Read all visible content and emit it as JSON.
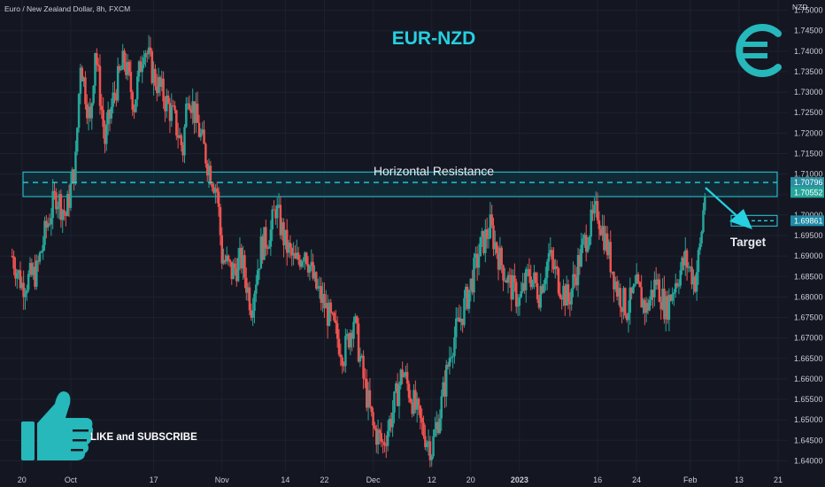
{
  "header": {
    "instrument": "Euro / New Zealand Dollar, 8h, FXCM",
    "currency": "NZD",
    "title": "EUR-NZD"
  },
  "annotations": {
    "resistance_label": "Horizontal Resistance",
    "target_label": "Target",
    "cta_label": "LIKE and SUBSCRIBE"
  },
  "icons": [
    "euro-icon",
    "thumbs-up-icon"
  ],
  "colors": {
    "background": "#141722",
    "accent": "#26d0e0",
    "up": "#26a69a",
    "down": "#ef5350",
    "zone_fill": "#0f3945",
    "price_badge": "#26a69a"
  },
  "chart_data": {
    "type": "candlestick",
    "title": "EUR-NZD",
    "ylabel": "NZD",
    "ylim": [
      1.6375,
      1.7525
    ],
    "yticks": [
      1.64,
      1.645,
      1.65,
      1.655,
      1.66,
      1.665,
      1.67,
      1.675,
      1.68,
      1.685,
      1.69,
      1.695,
      1.7,
      1.705,
      1.71,
      1.715,
      1.72,
      1.725,
      1.73,
      1.735,
      1.74,
      1.745,
      1.75
    ],
    "ytick_labels": [
      "1.64000",
      "1.64500",
      "1.65000",
      "1.65500",
      "1.66000",
      "1.66500",
      "1.67000",
      "1.67500",
      "1.68000",
      "1.68500",
      "1.69000",
      "1.69500",
      "1.70000",
      "1.70500",
      "1.71000",
      "1.71500",
      "1.72000",
      "1.72500",
      "1.73000",
      "1.73500",
      "1.74000",
      "1.74500",
      "1.75000"
    ],
    "xticks": [
      "20",
      "Oct",
      "17",
      "Nov",
      "14",
      "22",
      "Dec",
      "12",
      "20",
      "2023",
      "16",
      "24",
      "Feb",
      "13",
      "21"
    ],
    "xtick_days": [
      -6,
      4,
      21,
      35,
      48,
      56,
      66,
      78,
      86,
      96,
      112,
      120,
      131,
      141,
      149
    ],
    "resistance_zone": [
      1.7045,
      1.7105
    ],
    "resistance_level": 1.70796,
    "target_level": 1.69861,
    "price_badges": [
      {
        "label": "1.70796",
        "value": 1.70796
      },
      {
        "label": "1.70552",
        "value": 1.70552
      },
      {
        "label": "1.69861",
        "value": 1.69861
      }
    ],
    "close_path": [
      {
        "day": -8,
        "price": 1.69
      },
      {
        "day": -6,
        "price": 1.683
      },
      {
        "day": -3,
        "price": 1.686
      },
      {
        "day": -1,
        "price": 1.697
      },
      {
        "day": 1,
        "price": 1.705
      },
      {
        "day": 3,
        "price": 1.7
      },
      {
        "day": 5,
        "price": 1.713
      },
      {
        "day": 6,
        "price": 1.738
      },
      {
        "day": 8,
        "price": 1.722
      },
      {
        "day": 9,
        "price": 1.741
      },
      {
        "day": 11,
        "price": 1.718
      },
      {
        "day": 13,
        "price": 1.73
      },
      {
        "day": 15,
        "price": 1.738
      },
      {
        "day": 17,
        "price": 1.727
      },
      {
        "day": 19,
        "price": 1.742
      },
      {
        "day": 21,
        "price": 1.734
      },
      {
        "day": 23,
        "price": 1.729
      },
      {
        "day": 25,
        "price": 1.724
      },
      {
        "day": 27,
        "price": 1.716
      },
      {
        "day": 28,
        "price": 1.731
      },
      {
        "day": 30,
        "price": 1.722
      },
      {
        "day": 32,
        "price": 1.713
      },
      {
        "day": 34,
        "price": 1.706
      },
      {
        "day": 35,
        "price": 1.69
      },
      {
        "day": 37,
        "price": 1.686
      },
      {
        "day": 39,
        "price": 1.689
      },
      {
        "day": 41,
        "price": 1.678
      },
      {
        "day": 43,
        "price": 1.692
      },
      {
        "day": 45,
        "price": 1.696
      },
      {
        "day": 46,
        "price": 1.702
      },
      {
        "day": 48,
        "price": 1.693
      },
      {
        "day": 50,
        "price": 1.688
      },
      {
        "day": 52,
        "price": 1.692
      },
      {
        "day": 54,
        "price": 1.683
      },
      {
        "day": 56,
        "price": 1.678
      },
      {
        "day": 58,
        "price": 1.672
      },
      {
        "day": 60,
        "price": 1.666
      },
      {
        "day": 62,
        "price": 1.675
      },
      {
        "day": 64,
        "price": 1.66
      },
      {
        "day": 66,
        "price": 1.648
      },
      {
        "day": 68,
        "price": 1.644
      },
      {
        "day": 70,
        "price": 1.652
      },
      {
        "day": 72,
        "price": 1.662
      },
      {
        "day": 74,
        "price": 1.655
      },
      {
        "day": 76,
        "price": 1.648
      },
      {
        "day": 78,
        "price": 1.643
      },
      {
        "day": 80,
        "price": 1.654
      },
      {
        "day": 82,
        "price": 1.668
      },
      {
        "day": 84,
        "price": 1.675
      },
      {
        "day": 86,
        "price": 1.683
      },
      {
        "day": 88,
        "price": 1.692
      },
      {
        "day": 90,
        "price": 1.697
      },
      {
        "day": 92,
        "price": 1.689
      },
      {
        "day": 94,
        "price": 1.683
      },
      {
        "day": 96,
        "price": 1.679
      },
      {
        "day": 98,
        "price": 1.686
      },
      {
        "day": 100,
        "price": 1.681
      },
      {
        "day": 102,
        "price": 1.69
      },
      {
        "day": 104,
        "price": 1.684
      },
      {
        "day": 106,
        "price": 1.679
      },
      {
        "day": 108,
        "price": 1.688
      },
      {
        "day": 110,
        "price": 1.696
      },
      {
        "day": 112,
        "price": 1.701
      },
      {
        "day": 114,
        "price": 1.692
      },
      {
        "day": 116,
        "price": 1.682
      },
      {
        "day": 118,
        "price": 1.677
      },
      {
        "day": 120,
        "price": 1.682
      },
      {
        "day": 122,
        "price": 1.677
      },
      {
        "day": 124,
        "price": 1.684
      },
      {
        "day": 126,
        "price": 1.677
      },
      {
        "day": 128,
        "price": 1.684
      },
      {
        "day": 130,
        "price": 1.689
      },
      {
        "day": 132,
        "price": 1.684
      },
      {
        "day": 133,
        "price": 1.692
      },
      {
        "day": 134,
        "price": 1.7055
      }
    ]
  }
}
